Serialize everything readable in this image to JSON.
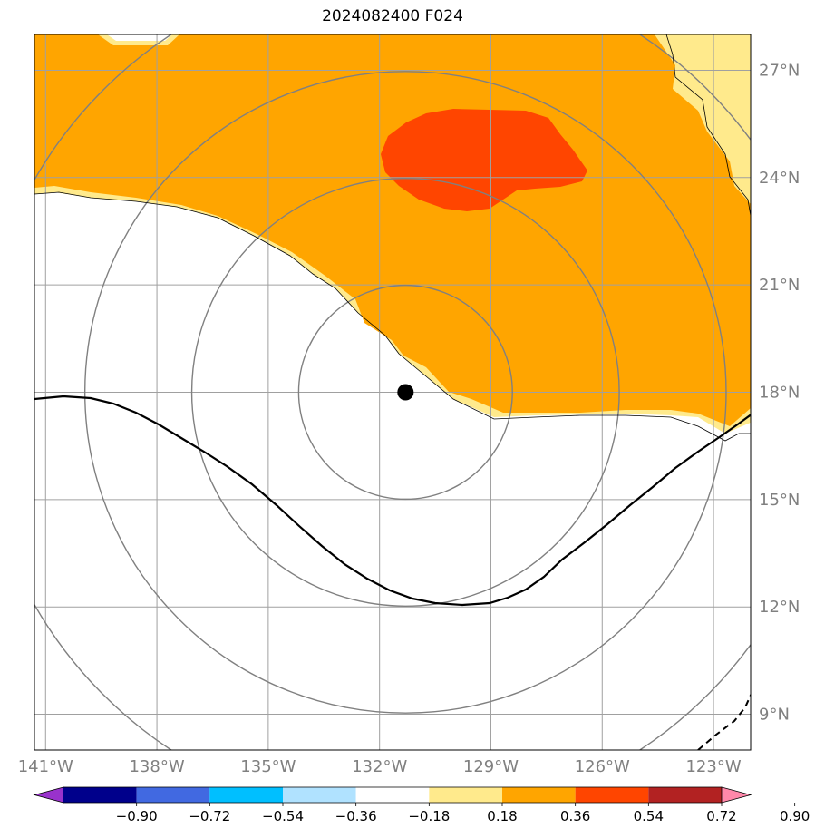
{
  "title": "2024082400 F024",
  "colors": {
    "land": "#ffffff",
    "field_036": "#FFA500",
    "field_054": "#FF4500",
    "field_018": "#FFEA8C",
    "grid": "#a0a0a0",
    "ring": "#808080",
    "contour": "#000000"
  },
  "map": {
    "lon_range": [
      -141.3,
      -122.0
    ],
    "lat_range": [
      8.0,
      28.0
    ],
    "center_marker": {
      "lon": -131.3,
      "lat": 18.0
    },
    "ring_radii_deg": [
      3.0,
      6.0,
      9.0,
      12.0
    ],
    "lat_ticks": [
      {
        "value": 27,
        "label": "27°N"
      },
      {
        "value": 24,
        "label": "24°N"
      },
      {
        "value": 21,
        "label": "21°N"
      },
      {
        "value": 18,
        "label": "18°N"
      },
      {
        "value": 15,
        "label": "15°N"
      },
      {
        "value": 12,
        "label": "12°N"
      },
      {
        "value": 9,
        "label": "9°N"
      }
    ],
    "lon_ticks": [
      {
        "value": -141,
        "label": "141°W"
      },
      {
        "value": -138,
        "label": "138°W"
      },
      {
        "value": -135,
        "label": "135°W"
      },
      {
        "value": -132,
        "label": "132°W"
      },
      {
        "value": -129,
        "label": "129°W"
      },
      {
        "value": -126,
        "label": "126°W"
      },
      {
        "value": -123,
        "label": "123°W"
      }
    ]
  },
  "colorbar": {
    "levels": [
      "−0.90",
      "−0.72",
      "−0.54",
      "−0.36",
      "−0.18",
      "0.18",
      "0.36",
      "0.54",
      "0.72",
      "0.90"
    ],
    "colors": [
      "#9932CC",
      "#00008B",
      "#4169E1",
      "#00BFFF",
      "#B0E2FF",
      "#FFFFFF",
      "#FFEA8C",
      "#FFA500",
      "#FF4500",
      "#B22222",
      "#FF88AA"
    ]
  }
}
